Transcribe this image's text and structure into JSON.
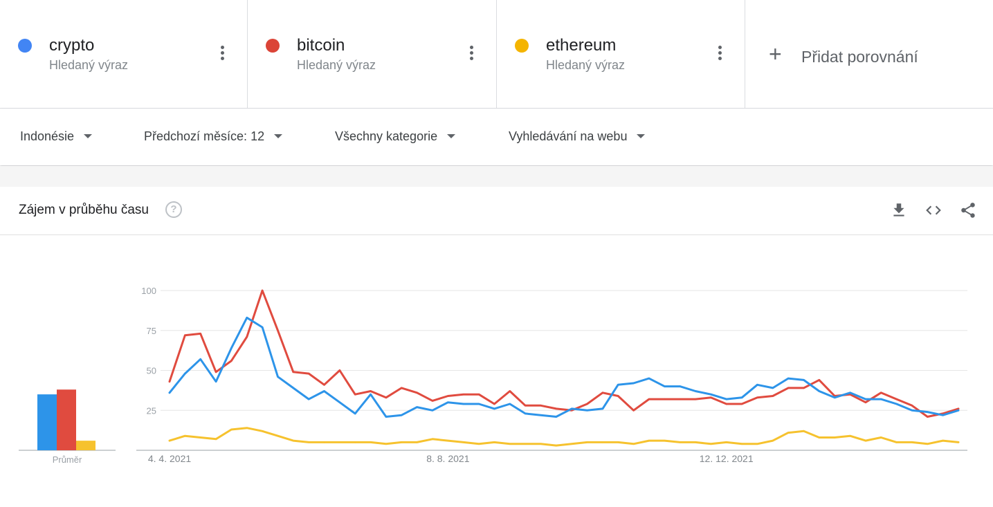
{
  "terms": [
    {
      "name": "crypto",
      "subtitle": "Hledaný výraz",
      "color": "#4285f4"
    },
    {
      "name": "bitcoin",
      "subtitle": "Hledaný výraz",
      "color": "#db4437"
    },
    {
      "name": "ethereum",
      "subtitle": "Hledaný výraz",
      "color": "#f4b400"
    }
  ],
  "add_compare": {
    "label": "Přidat porovnání",
    "icon": "plus-icon"
  },
  "filters": {
    "region": "Indonésie",
    "time": "Předchozí měsíce: 12",
    "category": "Všechny kategorie",
    "search_type": "Vyhledávání na webu"
  },
  "card": {
    "title": "Zájem v průběhu času",
    "help_icon": "?",
    "tools": [
      "download-icon",
      "embed-icon",
      "share-icon"
    ]
  },
  "chart_data": {
    "type": "line",
    "ylim": [
      0,
      100
    ],
    "yticks": [
      "100",
      "75",
      "50",
      "25"
    ],
    "x_tick_labels": [
      "4. 4. 2021",
      "8. 8. 2021",
      "12. 12. 2021"
    ],
    "x_tick_indices": [
      0,
      18,
      36
    ],
    "grid": true,
    "series": [
      {
        "name": "crypto",
        "color": "#2d94e9",
        "values": [
          36,
          48,
          57,
          43,
          64,
          83,
          77,
          46,
          39,
          32,
          37,
          30,
          23,
          35,
          21,
          22,
          27,
          25,
          30,
          29,
          29,
          26,
          29,
          23,
          22,
          21,
          26,
          25,
          26,
          41,
          42,
          45,
          40,
          40,
          37,
          35,
          32,
          33,
          41,
          39,
          45,
          44,
          37,
          33,
          36,
          32,
          32,
          29,
          25,
          24,
          22,
          25
        ]
      },
      {
        "name": "bitcoin",
        "color": "#e04b3f",
        "values": [
          43,
          72,
          73,
          49,
          56,
          71,
          100,
          75,
          49,
          48,
          41,
          50,
          35,
          37,
          33,
          39,
          36,
          31,
          34,
          35,
          35,
          29,
          37,
          28,
          28,
          26,
          25,
          29,
          36,
          34,
          25,
          32,
          32,
          32,
          32,
          33,
          29,
          29,
          33,
          34,
          39,
          39,
          44,
          34,
          35,
          30,
          36,
          32,
          28,
          21,
          23,
          26
        ]
      },
      {
        "name": "ethereum",
        "color": "#f6c22e",
        "values": [
          6,
          9,
          8,
          7,
          13,
          14,
          12,
          9,
          6,
          5,
          5,
          5,
          5,
          5,
          4,
          5,
          5,
          7,
          6,
          5,
          4,
          5,
          4,
          4,
          4,
          3,
          4,
          5,
          5,
          5,
          4,
          6,
          6,
          5,
          5,
          4,
          5,
          4,
          4,
          6,
          11,
          12,
          8,
          8,
          9,
          6,
          8,
          5,
          5,
          4,
          6,
          5
        ]
      }
    ],
    "average": {
      "label": "Průměr",
      "values": [
        {
          "name": "crypto",
          "value": 35,
          "color": "#2d94e9"
        },
        {
          "name": "bitcoin",
          "value": 38,
          "color": "#e04b3f"
        },
        {
          "name": "ethereum",
          "value": 6,
          "color": "#f6c22e"
        }
      ]
    }
  }
}
